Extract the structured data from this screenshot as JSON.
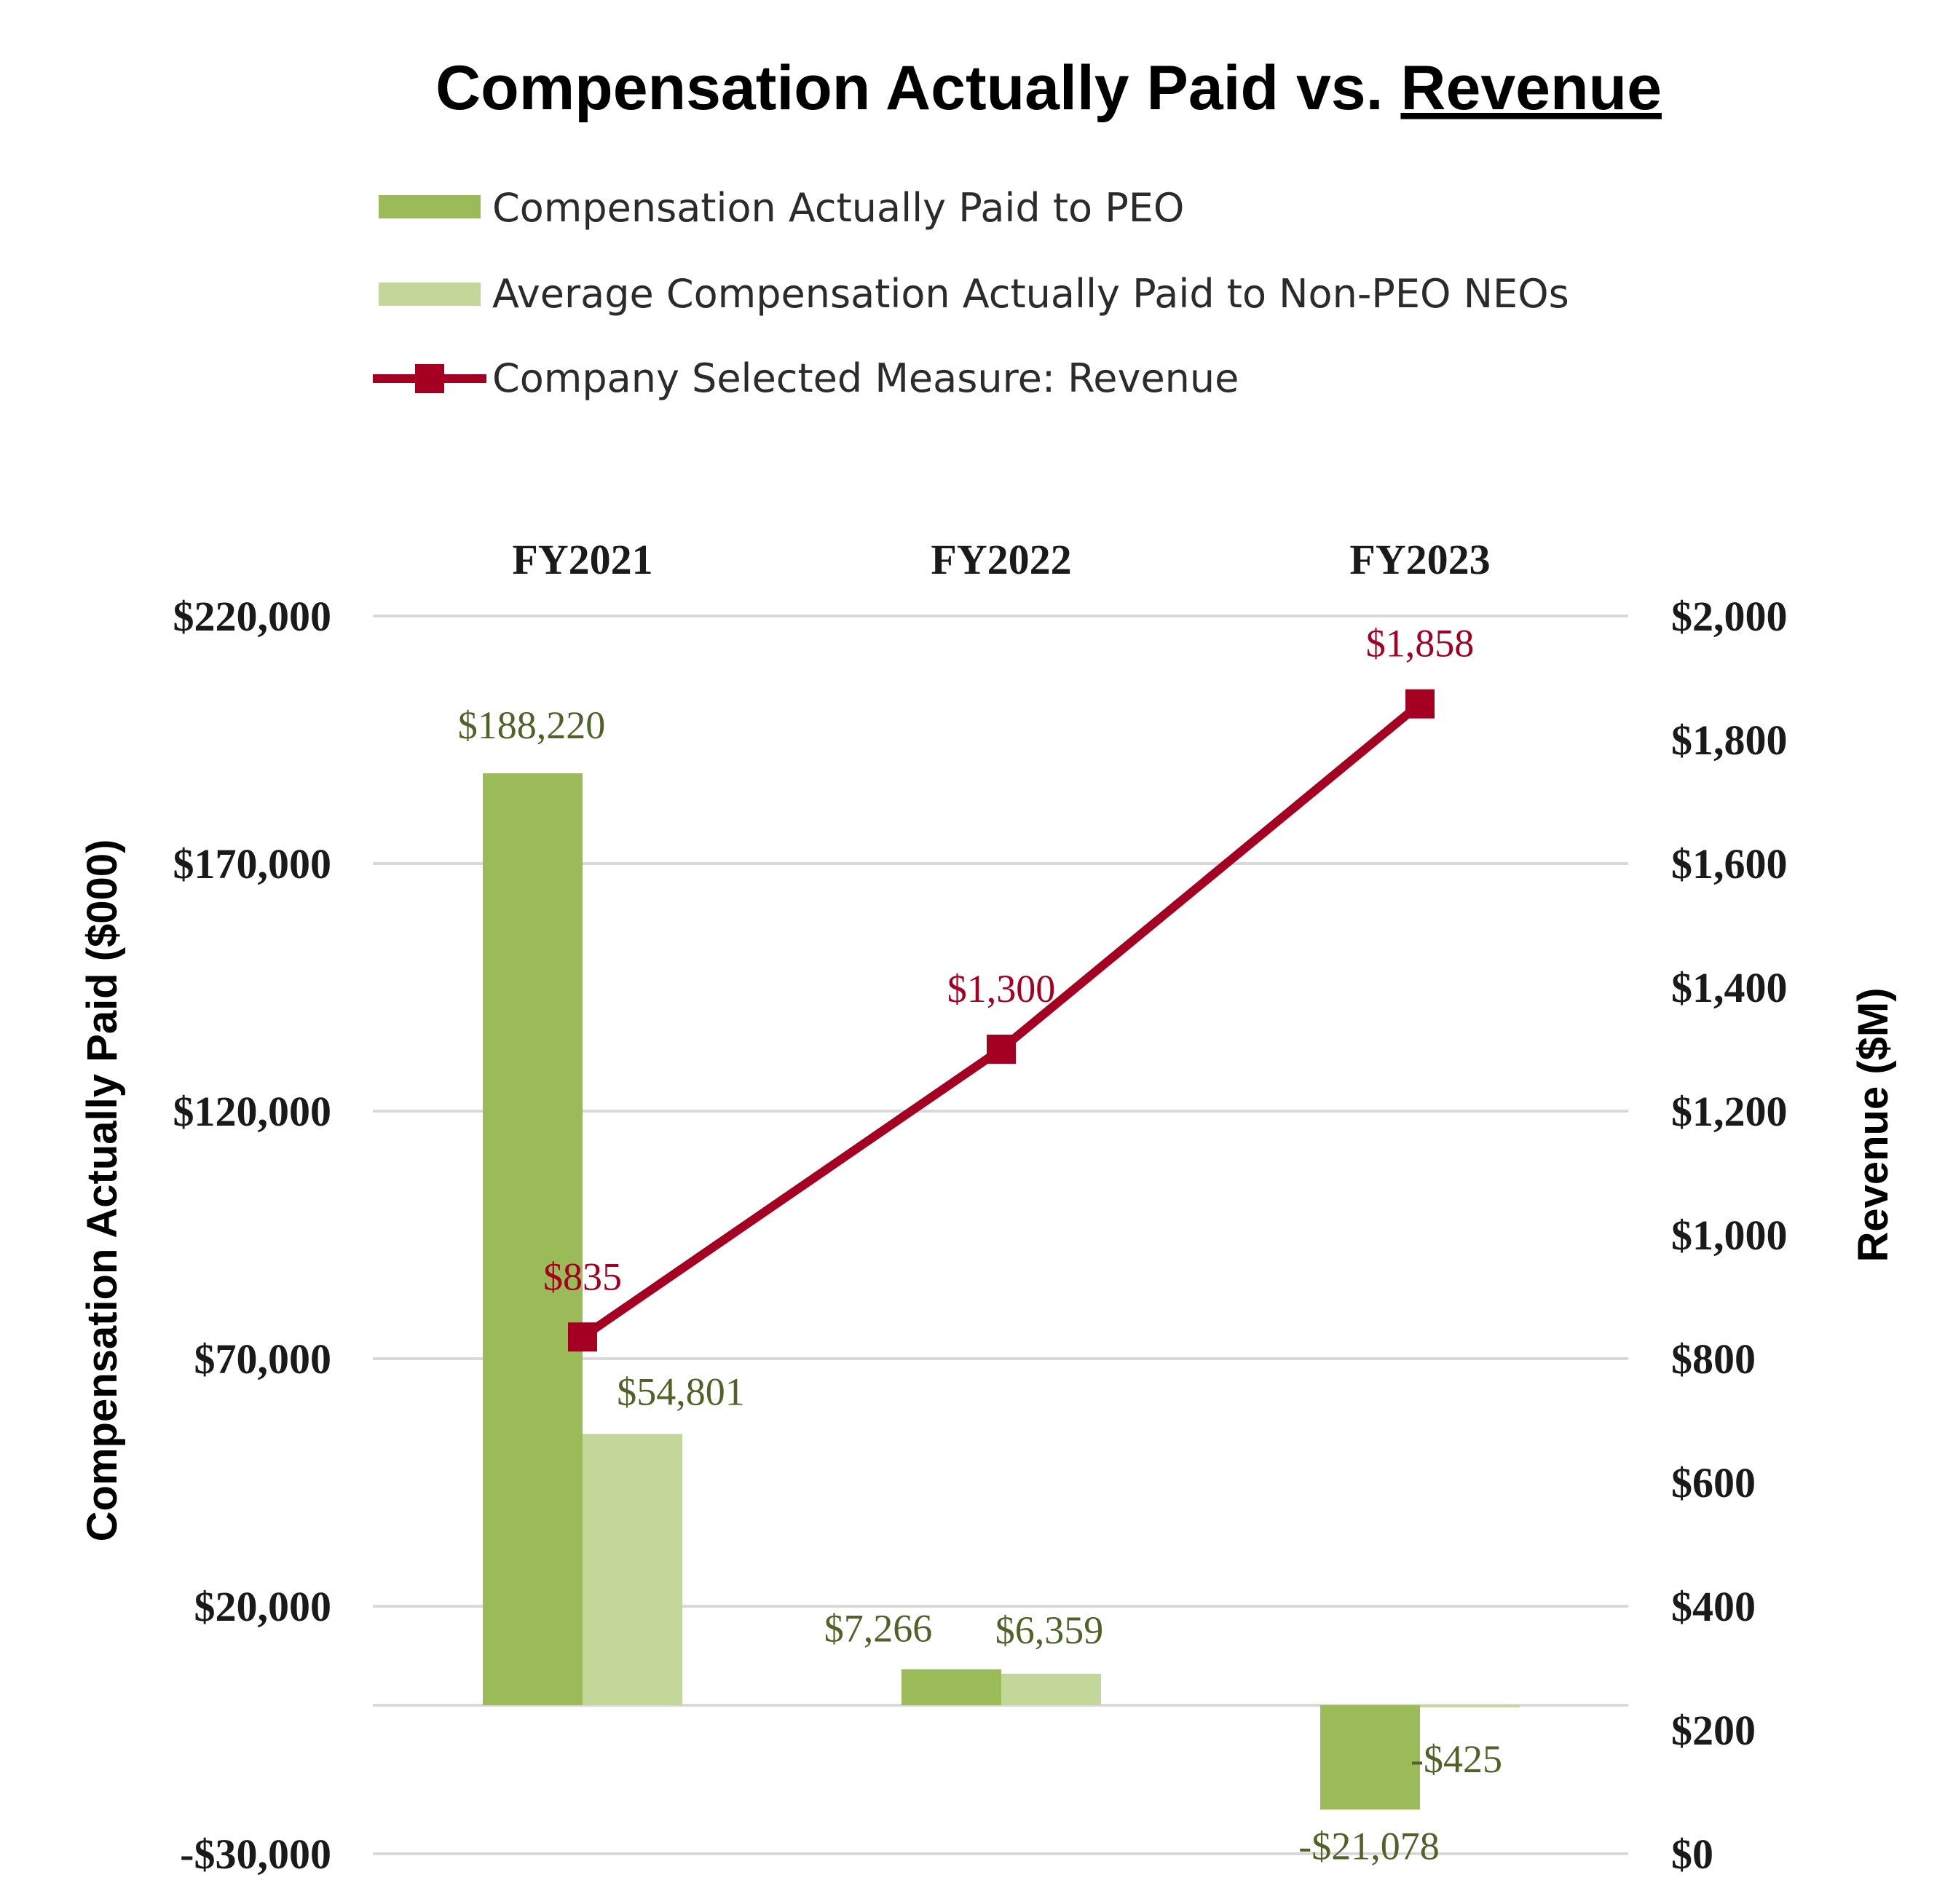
{
  "chart_data": {
    "type": "bar+line",
    "title_prefix": "Compensation Actually Paid vs. ",
    "title_underlined": "Revenue",
    "categories": [
      "FY2021",
      "FY2022",
      "FY2023"
    ],
    "series": [
      {
        "name": "Compensation Actually Paid to PEO",
        "type": "bar",
        "axis": "left",
        "color": "#9bbb59",
        "values": [
          188220,
          7266,
          -21078
        ],
        "labels": [
          "$188,220",
          "$7,266",
          "-$21,078"
        ]
      },
      {
        "name": "Average Compensation Actually Paid to Non-PEO NEOs",
        "type": "bar",
        "axis": "left",
        "color": "#c4d79b",
        "values": [
          54801,
          6359,
          -425
        ],
        "labels": [
          "$54,801",
          "$6,359",
          "-$425"
        ]
      },
      {
        "name": "Company Selected Measure: Revenue",
        "type": "line",
        "axis": "right",
        "color": "#a50021",
        "marker": "square",
        "values": [
          835,
          1300,
          1858
        ],
        "labels": [
          "$835",
          "$1,300",
          "$1,858"
        ]
      }
    ],
    "y_left": {
      "label": "Compensation Actually Paid ($000)",
      "ylim": [
        -30000,
        220000
      ],
      "ticks": [
        -30000,
        20000,
        70000,
        120000,
        170000,
        220000
      ],
      "tick_labels": [
        "-$30,000",
        "$20,000",
        "$70,000",
        "$120,000",
        "$170,000",
        "$220,000"
      ]
    },
    "y_right": {
      "label": "Revenue ($M)",
      "ylim": [
        0,
        2000
      ],
      "ticks": [
        0,
        200,
        400,
        600,
        800,
        1000,
        1200,
        1400,
        1600,
        1800,
        2000
      ],
      "tick_labels": [
        "$0",
        "$200",
        "$400",
        "$600",
        "$800",
        "$1,000",
        "$1,200",
        "$1,400",
        "$1,600",
        "$1,800",
        "$2,000"
      ]
    },
    "grid": true,
    "legend_position": "top"
  }
}
